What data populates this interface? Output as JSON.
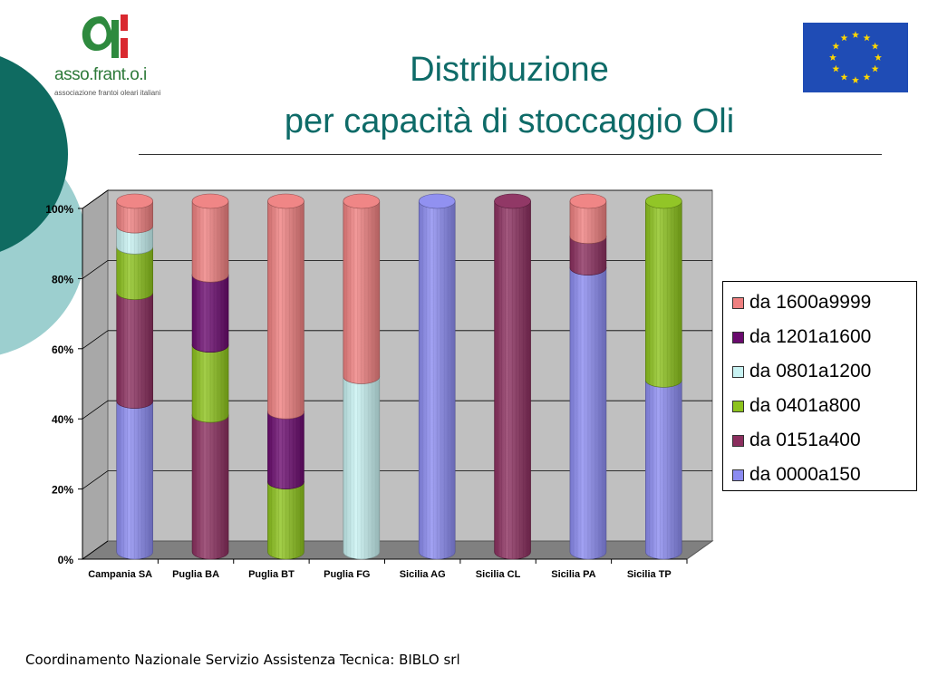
{
  "slide": {
    "title_line1": "Distribuzione",
    "title_line2": "per capacità di stoccaggio Oli",
    "footer": "Coordinamento Nazionale Servizio Assistenza Tecnica: BIBLO srl"
  },
  "logo": {
    "brand": "asso.frant.o.i",
    "subtitle": "associazione frantoi oleari italiani"
  },
  "colors": {
    "title": "#0e6b68",
    "deco_dark": "#0f6b61",
    "deco_light": "#9ccfcf",
    "eu_blue": "#1f4cb5",
    "eu_star": "#ffd700"
  },
  "icons": [
    "eu-flag-icon",
    "asso-frantoi-logo-icon"
  ],
  "chart_data": {
    "type": "bar",
    "stacked": "percent",
    "shape": "3d-cylinder",
    "categories": [
      "Campania SA",
      "Puglia BA",
      "Puglia BT",
      "Puglia FG",
      "Sicilia AG",
      "Sicilia CL",
      "Sicilia PA",
      "Sicilia TP"
    ],
    "series": [
      {
        "name": "da 0000a150",
        "color": "#8b8bf0",
        "values": [
          43,
          0,
          0,
          0,
          100,
          0,
          81,
          49
        ]
      },
      {
        "name": "da 0151a400",
        "color": "#8b2e5e",
        "values": [
          31,
          39,
          0,
          0,
          0,
          100,
          9,
          0
        ]
      },
      {
        "name": "da 0401a800",
        "color": "#8cc21c",
        "values": [
          13,
          20,
          20,
          0,
          0,
          0,
          0,
          51
        ]
      },
      {
        "name": "da 0801a1200",
        "color": "#c8f2f2",
        "values": [
          6,
          0,
          0,
          50,
          0,
          0,
          0,
          0
        ]
      },
      {
        "name": "da 1201a1600",
        "color": "#6a0a6e",
        "values": [
          0,
          20,
          20,
          0,
          0,
          0,
          0,
          0
        ]
      },
      {
        "name": "da 1600a9999",
        "color": "#ef8080",
        "values": [
          7,
          21,
          60,
          50,
          0,
          0,
          10,
          0
        ]
      }
    ],
    "y_ticks": [
      "0%",
      "20%",
      "40%",
      "60%",
      "80%",
      "100%"
    ],
    "ylim": [
      0,
      100
    ],
    "legend_position": "right",
    "legend_order": [
      5,
      4,
      3,
      2,
      1,
      0
    ],
    "grid": true,
    "wall_color": "#c0c0c0",
    "floor_color": "#808080"
  }
}
